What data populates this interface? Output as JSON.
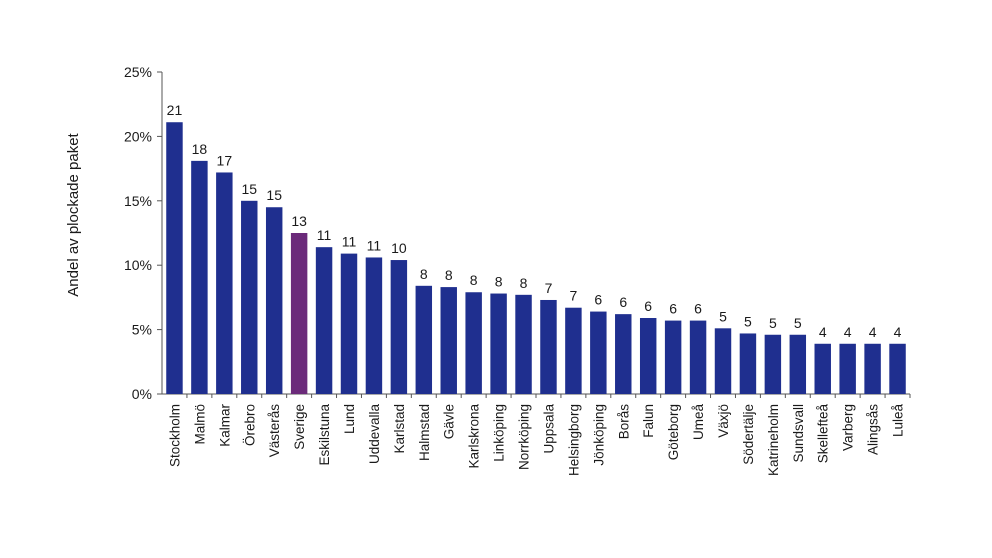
{
  "chart_data": {
    "type": "bar",
    "ylabel": "Andel av plockade paket",
    "ylim": [
      0,
      25
    ],
    "yticks": [
      0,
      5,
      10,
      15,
      20,
      25
    ],
    "ytick_labels": [
      "0%",
      "5%",
      "10%",
      "15%",
      "20%",
      "25%"
    ],
    "grid": false,
    "categories": [
      "Stockholm",
      "Malmö",
      "Kalmar",
      "Örebro",
      "Västerås",
      "Sverige",
      "Eskilstuna",
      "Lund",
      "Uddevalla",
      "Karlstad",
      "Halmstad",
      "Gävle",
      "Karlskrona",
      "Linköping",
      "Norrköping",
      "Uppsala",
      "Helsingborg",
      "Jönköping",
      "Borås",
      "Falun",
      "Göteborg",
      "Umeå",
      "Växjö",
      "Södertälje",
      "Katrineholm",
      "Sundsvall",
      "Skellefteå",
      "Varberg",
      "Alingsås",
      "Luleå"
    ],
    "values": [
      21.1,
      18.1,
      17.2,
      15.0,
      14.5,
      12.5,
      11.4,
      10.9,
      10.6,
      10.4,
      8.4,
      8.3,
      7.9,
      7.8,
      7.7,
      7.3,
      6.7,
      6.4,
      6.2,
      5.9,
      5.7,
      5.7,
      5.1,
      4.7,
      4.6,
      4.6,
      3.9,
      3.9,
      3.9,
      3.9
    ],
    "data_labels": [
      "21",
      "18",
      "17",
      "15",
      "15",
      "13",
      "11",
      "11",
      "11",
      "10",
      "8",
      "8",
      "8",
      "8",
      "8",
      "7",
      "7",
      "6",
      "6",
      "6",
      "6",
      "6",
      "5",
      "5",
      "5",
      "5",
      "4",
      "4",
      "4",
      "4"
    ],
    "colors": {
      "bar": "#1f2f8f",
      "highlight": "#6b2a7a",
      "highlight_category": "Sverige"
    }
  }
}
